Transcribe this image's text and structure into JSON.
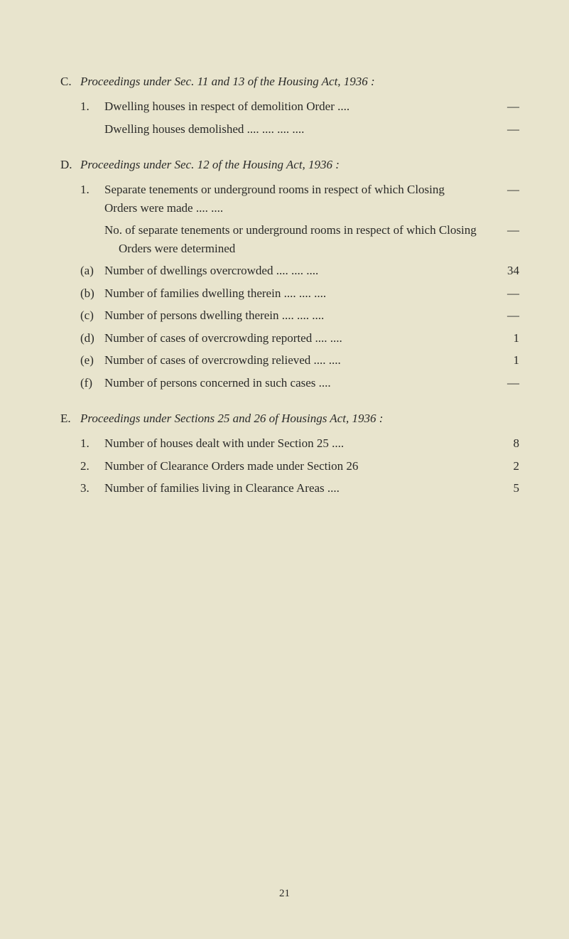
{
  "sectionC": {
    "label": "C.",
    "title": "Proceedings under Sec. 11 and 13 of the Housing Act, 1936 :",
    "items": [
      {
        "label": "1.",
        "text": "Dwelling houses in respect of demolition Order     ....",
        "value": "—"
      },
      {
        "label": "",
        "text": "Dwelling houses demolished   ....      ....      ....      ....",
        "value": "—"
      }
    ]
  },
  "sectionD": {
    "label": "D.",
    "title": "Proceedings under Sec. 12 of the Housing Act, 1936 :",
    "items": [
      {
        "label": "1.",
        "text": "Separate tenements or underground rooms in respect of which Closing Orders were made              ....    ....",
        "value": "—"
      },
      {
        "label": "",
        "text": "No. of separate tenements or underground rooms in respect of which Closing Orders were determined",
        "value": "—"
      },
      {
        "label": "(a)",
        "text": "Number of dwellings overcrowded    ....      ....      ....",
        "value": "34"
      },
      {
        "label": "(b)",
        "text": "Number of families dwelling therein ....      ....      ....",
        "value": "—"
      },
      {
        "label": "(c)",
        "text": "Number of persons dwelling therein ....      ....      ....",
        "value": "—"
      },
      {
        "label": "(d)",
        "text": "Number of cases of overcrowding reported ....      ....",
        "value": "1"
      },
      {
        "label": "(e)",
        "text": "Number of cases of overcrowding relieved  ....      ....",
        "value": "1"
      },
      {
        "label": "(f)",
        "text": "Number of persons concerned in such cases          ....",
        "value": "—"
      }
    ]
  },
  "sectionE": {
    "label": "E.",
    "title": "Proceedings under Sections 25 and 26 of Housings Act, 1936 :",
    "items": [
      {
        "label": "1.",
        "text": "Number of houses dealt with under Section 25       ....",
        "value": "8"
      },
      {
        "label": "2.",
        "text": "Number of Clearance Orders made under Section 26",
        "value": "2"
      },
      {
        "label": "3.",
        "text": "Number of families living in Clearance Areas         ....",
        "value": "5"
      }
    ]
  },
  "pageNumber": "21"
}
